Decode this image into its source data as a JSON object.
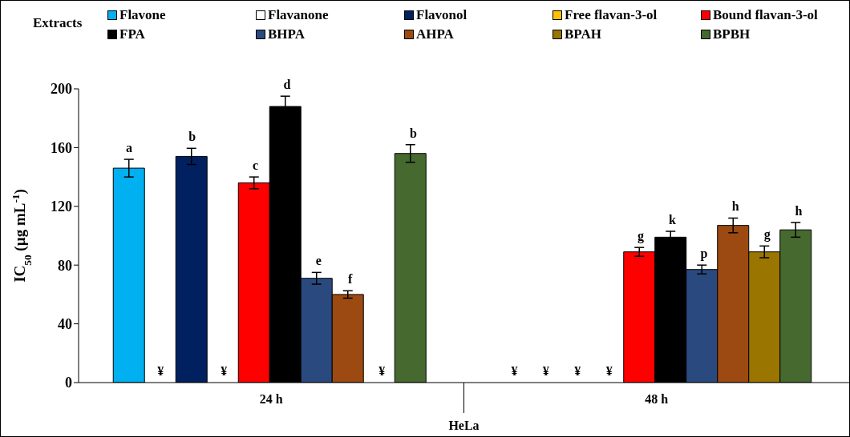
{
  "chart_data": {
    "type": "bar",
    "ylabel": "IC$_{50}$ (µg mL$^{-1}$)",
    "xlabel": "HeLa",
    "legend_title": "Extracts",
    "categories": [
      "24 h",
      "48 h"
    ],
    "series": [
      {
        "name": "Flavone",
        "color": "#00b0f0",
        "values": [
          146,
          null
        ],
        "errors": [
          6,
          null
        ],
        "value_labels": [
          "a",
          "¥"
        ]
      },
      {
        "name": "Flavanone",
        "color": "#ffffff",
        "values": [
          null,
          null
        ],
        "errors": [
          null,
          null
        ],
        "value_labels": [
          "¥",
          "¥"
        ]
      },
      {
        "name": "Flavonol",
        "color": "#002060",
        "values": [
          154,
          null
        ],
        "errors": [
          5.5,
          null
        ],
        "value_labels": [
          "b",
          "¥"
        ]
      },
      {
        "name": "Free flavan-3-ol",
        "color": "#ffc000",
        "values": [
          null,
          null
        ],
        "errors": [
          null,
          null
        ],
        "value_labels": [
          "¥",
          "¥"
        ]
      },
      {
        "name": "Bound flavan-3-ol",
        "color": "#ff0000",
        "values": [
          136,
          89
        ],
        "errors": [
          4,
          3
        ],
        "value_labels": [
          "c",
          "g"
        ]
      },
      {
        "name": "FPA",
        "color": "#000000",
        "values": [
          188,
          99
        ],
        "errors": [
          7,
          4
        ],
        "value_labels": [
          "d",
          "k"
        ]
      },
      {
        "name": "BHPA",
        "color": "#2a4a7f",
        "values": [
          71,
          77
        ],
        "errors": [
          4,
          3
        ],
        "value_labels": [
          "e",
          "p"
        ]
      },
      {
        "name": "AHPA",
        "color": "#9c4a12",
        "values": [
          60,
          107
        ],
        "errors": [
          2.5,
          5
        ],
        "value_labels": [
          "f",
          "h"
        ]
      },
      {
        "name": "BPAH",
        "color": "#9a7500",
        "values": [
          null,
          89
        ],
        "errors": [
          null,
          4
        ],
        "value_labels": [
          "¥",
          "g"
        ]
      },
      {
        "name": "BPBH",
        "color": "#46692f",
        "values": [
          156,
          104
        ],
        "errors": [
          6,
          5
        ],
        "value_labels": [
          "b",
          "h"
        ]
      }
    ],
    "ylim": [
      0,
      200
    ],
    "yticks": [
      0,
      40,
      80,
      120,
      160,
      200
    ],
    "legend": "top"
  }
}
